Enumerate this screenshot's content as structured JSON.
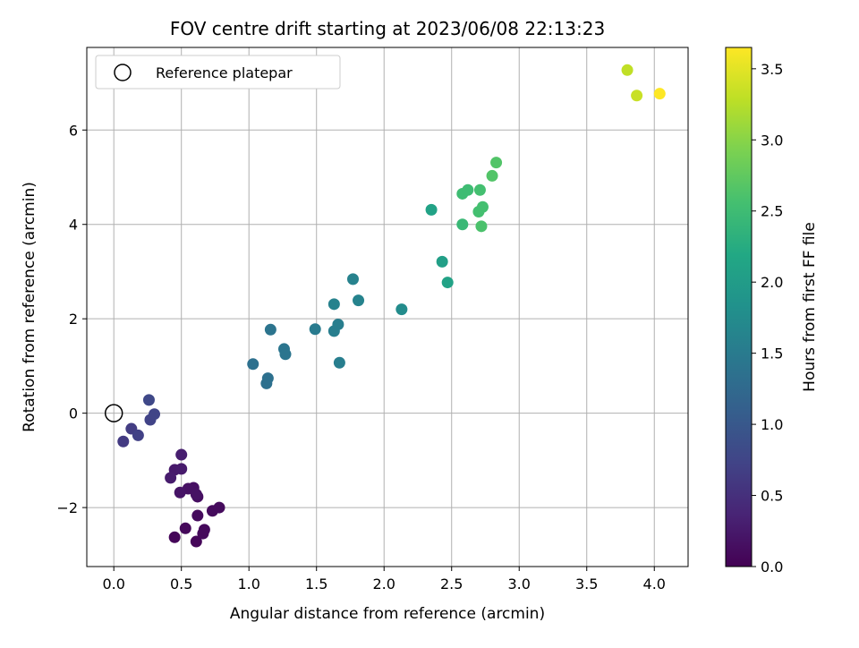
{
  "chart_data": {
    "type": "scatter",
    "title": "FOV centre drift starting at 2023/06/08 22:13:23",
    "xlabel": "Angular distance from reference (arcmin)",
    "ylabel": "Rotation from reference (arcmin)",
    "xlim": [
      -0.2,
      4.25
    ],
    "ylim": [
      -3.25,
      7.75
    ],
    "xticks": [
      0.0,
      0.5,
      1.0,
      1.5,
      2.0,
      2.5,
      3.0,
      3.5,
      4.0
    ],
    "xtick_labels": [
      "0.0",
      "0.5",
      "1.0",
      "1.5",
      "2.0",
      "2.5",
      "3.0",
      "3.5",
      "4.0"
    ],
    "yticks": [
      -2,
      0,
      2,
      4,
      6
    ],
    "ytick_labels": [
      "−2",
      "0",
      "2",
      "4",
      "6"
    ],
    "grid": true,
    "legend": {
      "position": "top-left",
      "entries": [
        "Reference platepar"
      ]
    },
    "reference_point": {
      "x": 0,
      "y": 0
    },
    "colorbar": {
      "label": "Hours from first FF file",
      "colormap": "viridis",
      "range": [
        0,
        3.65
      ],
      "ticks": [
        0.0,
        0.5,
        1.0,
        1.5,
        2.0,
        2.5,
        3.0,
        3.5
      ],
      "tick_labels": [
        "0.0",
        "0.5",
        "1.0",
        "1.5",
        "2.0",
        "2.5",
        "3.0",
        "3.5"
      ]
    },
    "points": [
      {
        "x": 0.45,
        "y": -2.63,
        "c": 0.05
      },
      {
        "x": 0.61,
        "y": -2.72,
        "c": 0.05
      },
      {
        "x": 0.53,
        "y": -2.44,
        "c": 0.07
      },
      {
        "x": 0.66,
        "y": -2.55,
        "c": 0.08
      },
      {
        "x": 0.67,
        "y": -2.47,
        "c": 0.08
      },
      {
        "x": 0.62,
        "y": -2.17,
        "c": 0.1
      },
      {
        "x": 0.73,
        "y": -2.07,
        "c": 0.1
      },
      {
        "x": 0.78,
        "y": -2.0,
        "c": 0.1
      },
      {
        "x": 0.62,
        "y": -1.77,
        "c": 0.13
      },
      {
        "x": 0.59,
        "y": -1.58,
        "c": 0.15
      },
      {
        "x": 0.55,
        "y": -1.6,
        "c": 0.17
      },
      {
        "x": 0.49,
        "y": -1.68,
        "c": 0.2
      },
      {
        "x": 0.61,
        "y": -1.72,
        "c": 0.18
      },
      {
        "x": 0.45,
        "y": -1.2,
        "c": 0.25
      },
      {
        "x": 0.5,
        "y": -1.18,
        "c": 0.27
      },
      {
        "x": 0.42,
        "y": -1.37,
        "c": 0.28
      },
      {
        "x": 0.5,
        "y": -0.88,
        "c": 0.3
      },
      {
        "x": 0.07,
        "y": -0.6,
        "c": 0.62
      },
      {
        "x": 0.13,
        "y": -0.33,
        "c": 0.65
      },
      {
        "x": 0.18,
        "y": -0.47,
        "c": 0.7
      },
      {
        "x": 0.27,
        "y": -0.14,
        "c": 0.72
      },
      {
        "x": 0.3,
        "y": -0.02,
        "c": 0.75
      },
      {
        "x": 0.26,
        "y": 0.28,
        "c": 0.78
      },
      {
        "x": 1.03,
        "y": 1.04,
        "c": 1.35
      },
      {
        "x": 1.13,
        "y": 0.63,
        "c": 1.35
      },
      {
        "x": 1.14,
        "y": 0.74,
        "c": 1.35
      },
      {
        "x": 1.16,
        "y": 1.77,
        "c": 1.4
      },
      {
        "x": 1.26,
        "y": 1.36,
        "c": 1.42
      },
      {
        "x": 1.27,
        "y": 1.25,
        "c": 1.42
      },
      {
        "x": 1.49,
        "y": 1.78,
        "c": 1.5
      },
      {
        "x": 1.63,
        "y": 1.74,
        "c": 1.55
      },
      {
        "x": 1.66,
        "y": 1.88,
        "c": 1.55
      },
      {
        "x": 1.67,
        "y": 1.07,
        "c": 1.55
      },
      {
        "x": 1.63,
        "y": 2.31,
        "c": 1.6
      },
      {
        "x": 1.77,
        "y": 2.84,
        "c": 1.6
      },
      {
        "x": 1.81,
        "y": 2.39,
        "c": 1.62
      },
      {
        "x": 2.13,
        "y": 2.2,
        "c": 1.75
      },
      {
        "x": 2.35,
        "y": 4.31,
        "c": 2.1
      },
      {
        "x": 2.43,
        "y": 3.21,
        "c": 2.05
      },
      {
        "x": 2.47,
        "y": 2.77,
        "c": 2.1
      },
      {
        "x": 2.58,
        "y": 4.0,
        "c": 2.45
      },
      {
        "x": 2.58,
        "y": 4.65,
        "c": 2.5
      },
      {
        "x": 2.62,
        "y": 4.73,
        "c": 2.5
      },
      {
        "x": 2.7,
        "y": 4.27,
        "c": 2.55
      },
      {
        "x": 2.73,
        "y": 4.37,
        "c": 2.55
      },
      {
        "x": 2.71,
        "y": 4.73,
        "c": 2.55
      },
      {
        "x": 2.72,
        "y": 3.96,
        "c": 2.6
      },
      {
        "x": 2.8,
        "y": 5.03,
        "c": 2.65
      },
      {
        "x": 2.83,
        "y": 5.31,
        "c": 2.65
      },
      {
        "x": 3.8,
        "y": 7.27,
        "c": 3.3
      },
      {
        "x": 3.87,
        "y": 6.73,
        "c": 3.35
      },
      {
        "x": 4.04,
        "y": 6.77,
        "c": 3.65
      }
    ]
  }
}
